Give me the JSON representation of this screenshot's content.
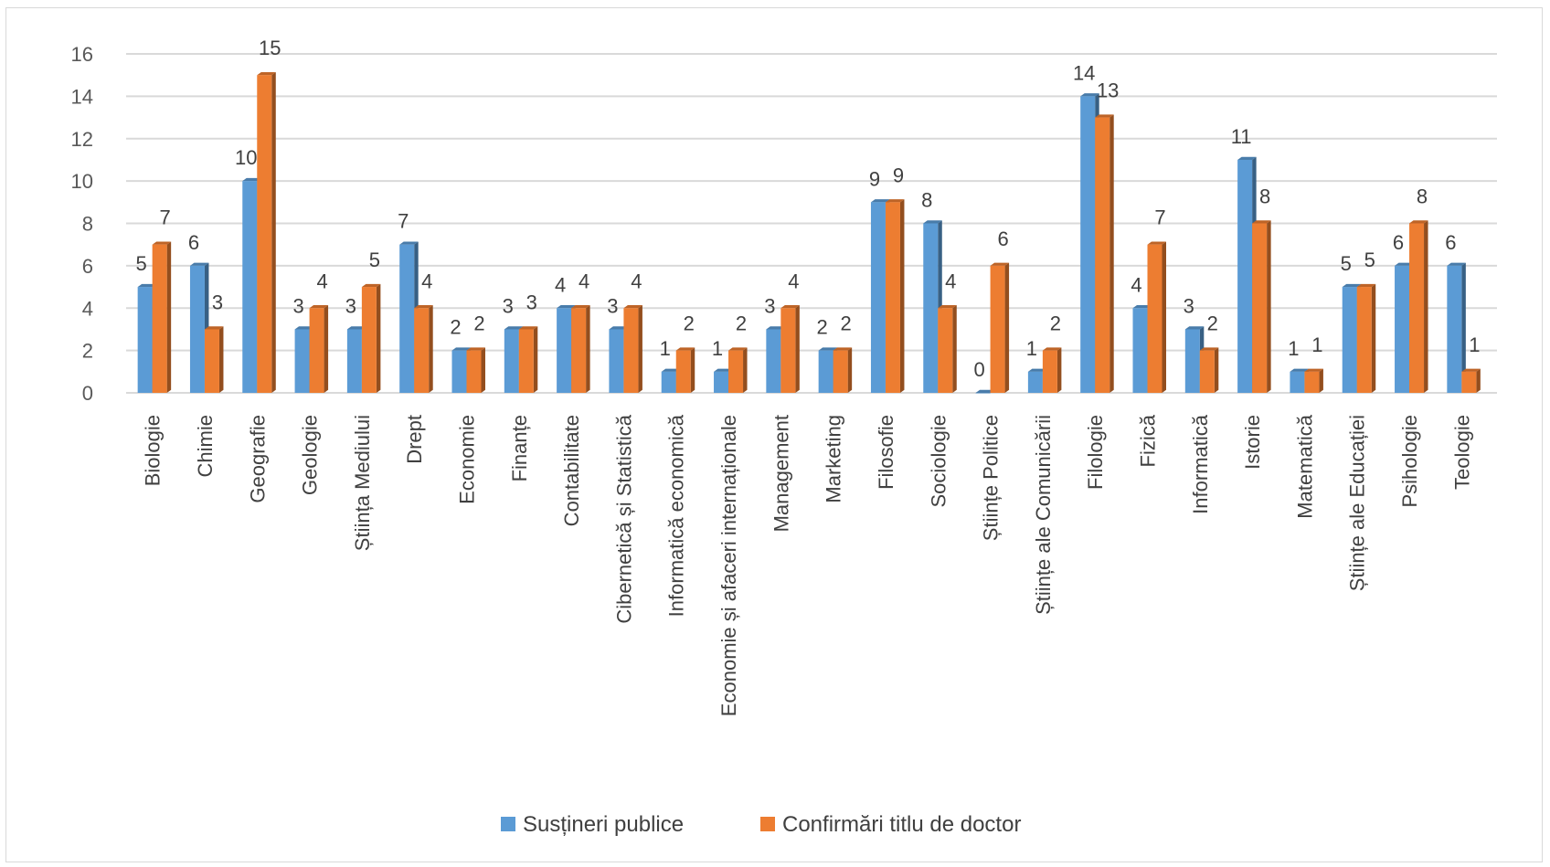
{
  "chart_data": {
    "type": "bar",
    "categories": [
      "Biologie",
      "Chimie",
      "Geografie",
      "Geologie",
      "Știința Mediului",
      "Drept",
      "Economie",
      "Finanțe",
      "Contabilitate",
      "Cibernetică și Statistică",
      "Informatică economică",
      "Economie și afaceri internaționale",
      "Management",
      "Marketing",
      "Filosofie",
      "Sociologie",
      "Științe Politice",
      "Științe ale Comunicării",
      "Filologie",
      "Fizică",
      "Informatică",
      "Istorie",
      "Matematică",
      "Științe ale Educației",
      "Psihologie",
      "Teologie"
    ],
    "series": [
      {
        "name": "Susțineri publice",
        "color": "#5b9bd5",
        "values": [
          5,
          6,
          10,
          3,
          3,
          7,
          2,
          3,
          4,
          3,
          1,
          1,
          3,
          2,
          9,
          8,
          0,
          1,
          14,
          4,
          3,
          11,
          1,
          5,
          6,
          6
        ]
      },
      {
        "name": "Confirmări titlu de doctor",
        "color": "#ed7d31",
        "values": [
          7,
          3,
          15,
          4,
          5,
          4,
          2,
          3,
          4,
          4,
          2,
          2,
          4,
          2,
          9,
          4,
          6,
          2,
          13,
          7,
          2,
          8,
          1,
          5,
          8,
          1
        ]
      }
    ],
    "ylim": [
      0,
      16
    ],
    "yticks": [
      0,
      2,
      4,
      6,
      8,
      10,
      12,
      14,
      16
    ],
    "grid": true,
    "legend_position": "bottom",
    "data_labels": true
  }
}
